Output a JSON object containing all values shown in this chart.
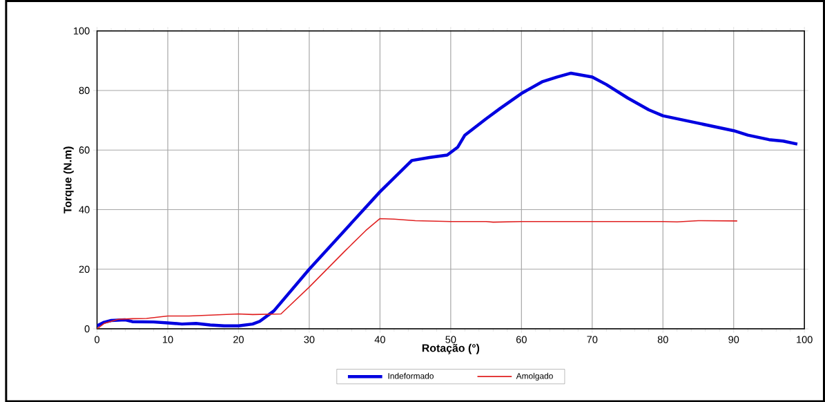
{
  "chart_data": {
    "type": "line",
    "xlabel": "Rotação (°)",
    "ylabel": "Torque  (N.m)",
    "xlim": [
      0,
      100
    ],
    "ylim": [
      0,
      100
    ],
    "xticks": [
      0,
      10,
      20,
      30,
      40,
      50,
      60,
      70,
      80,
      90,
      100
    ],
    "yticks": [
      0,
      20,
      40,
      60,
      80,
      100
    ],
    "grid": true,
    "legend": "bottom",
    "marker": "none",
    "line_style": "solid",
    "series": [
      {
        "name": "Indeformado",
        "color": "#0000e0",
        "x": [
          0,
          1,
          2,
          4,
          5,
          8,
          10,
          12,
          14,
          16,
          18,
          20,
          22,
          23,
          25,
          30,
          35,
          40,
          44.5,
          47,
          49.5,
          51,
          52,
          55,
          57,
          60,
          63,
          65,
          67,
          70,
          72,
          75,
          78,
          80,
          85,
          90,
          92,
          95,
          97,
          99
        ],
        "values": [
          1,
          2.2,
          2.8,
          3,
          2.4,
          2.3,
          2,
          1.6,
          1.8,
          1.3,
          1,
          1,
          1.6,
          2.5,
          6,
          20,
          33,
          46,
          56.5,
          57.5,
          58.3,
          61,
          65,
          70.5,
          74,
          79,
          83,
          84.5,
          85.8,
          84.5,
          82,
          77.5,
          73.5,
          71.5,
          69,
          66.5,
          65,
          63.5,
          63,
          62
        ]
      },
      {
        "name": "Amolgado",
        "color": "#e02020",
        "x": [
          0,
          1,
          3,
          5,
          7,
          10,
          13,
          16,
          20,
          22,
          26,
          30,
          35,
          38,
          40,
          42,
          45,
          50,
          55,
          56,
          60,
          70,
          80,
          82,
          85,
          90.5
        ],
        "values": [
          0,
          1.8,
          3.2,
          3.4,
          3.5,
          4.3,
          4.3,
          4.6,
          5,
          4.8,
          5,
          14,
          26,
          33,
          37,
          36.8,
          36.3,
          36,
          36,
          35.8,
          36,
          36,
          36,
          35.9,
          36.3,
          36.2
        ]
      }
    ]
  }
}
